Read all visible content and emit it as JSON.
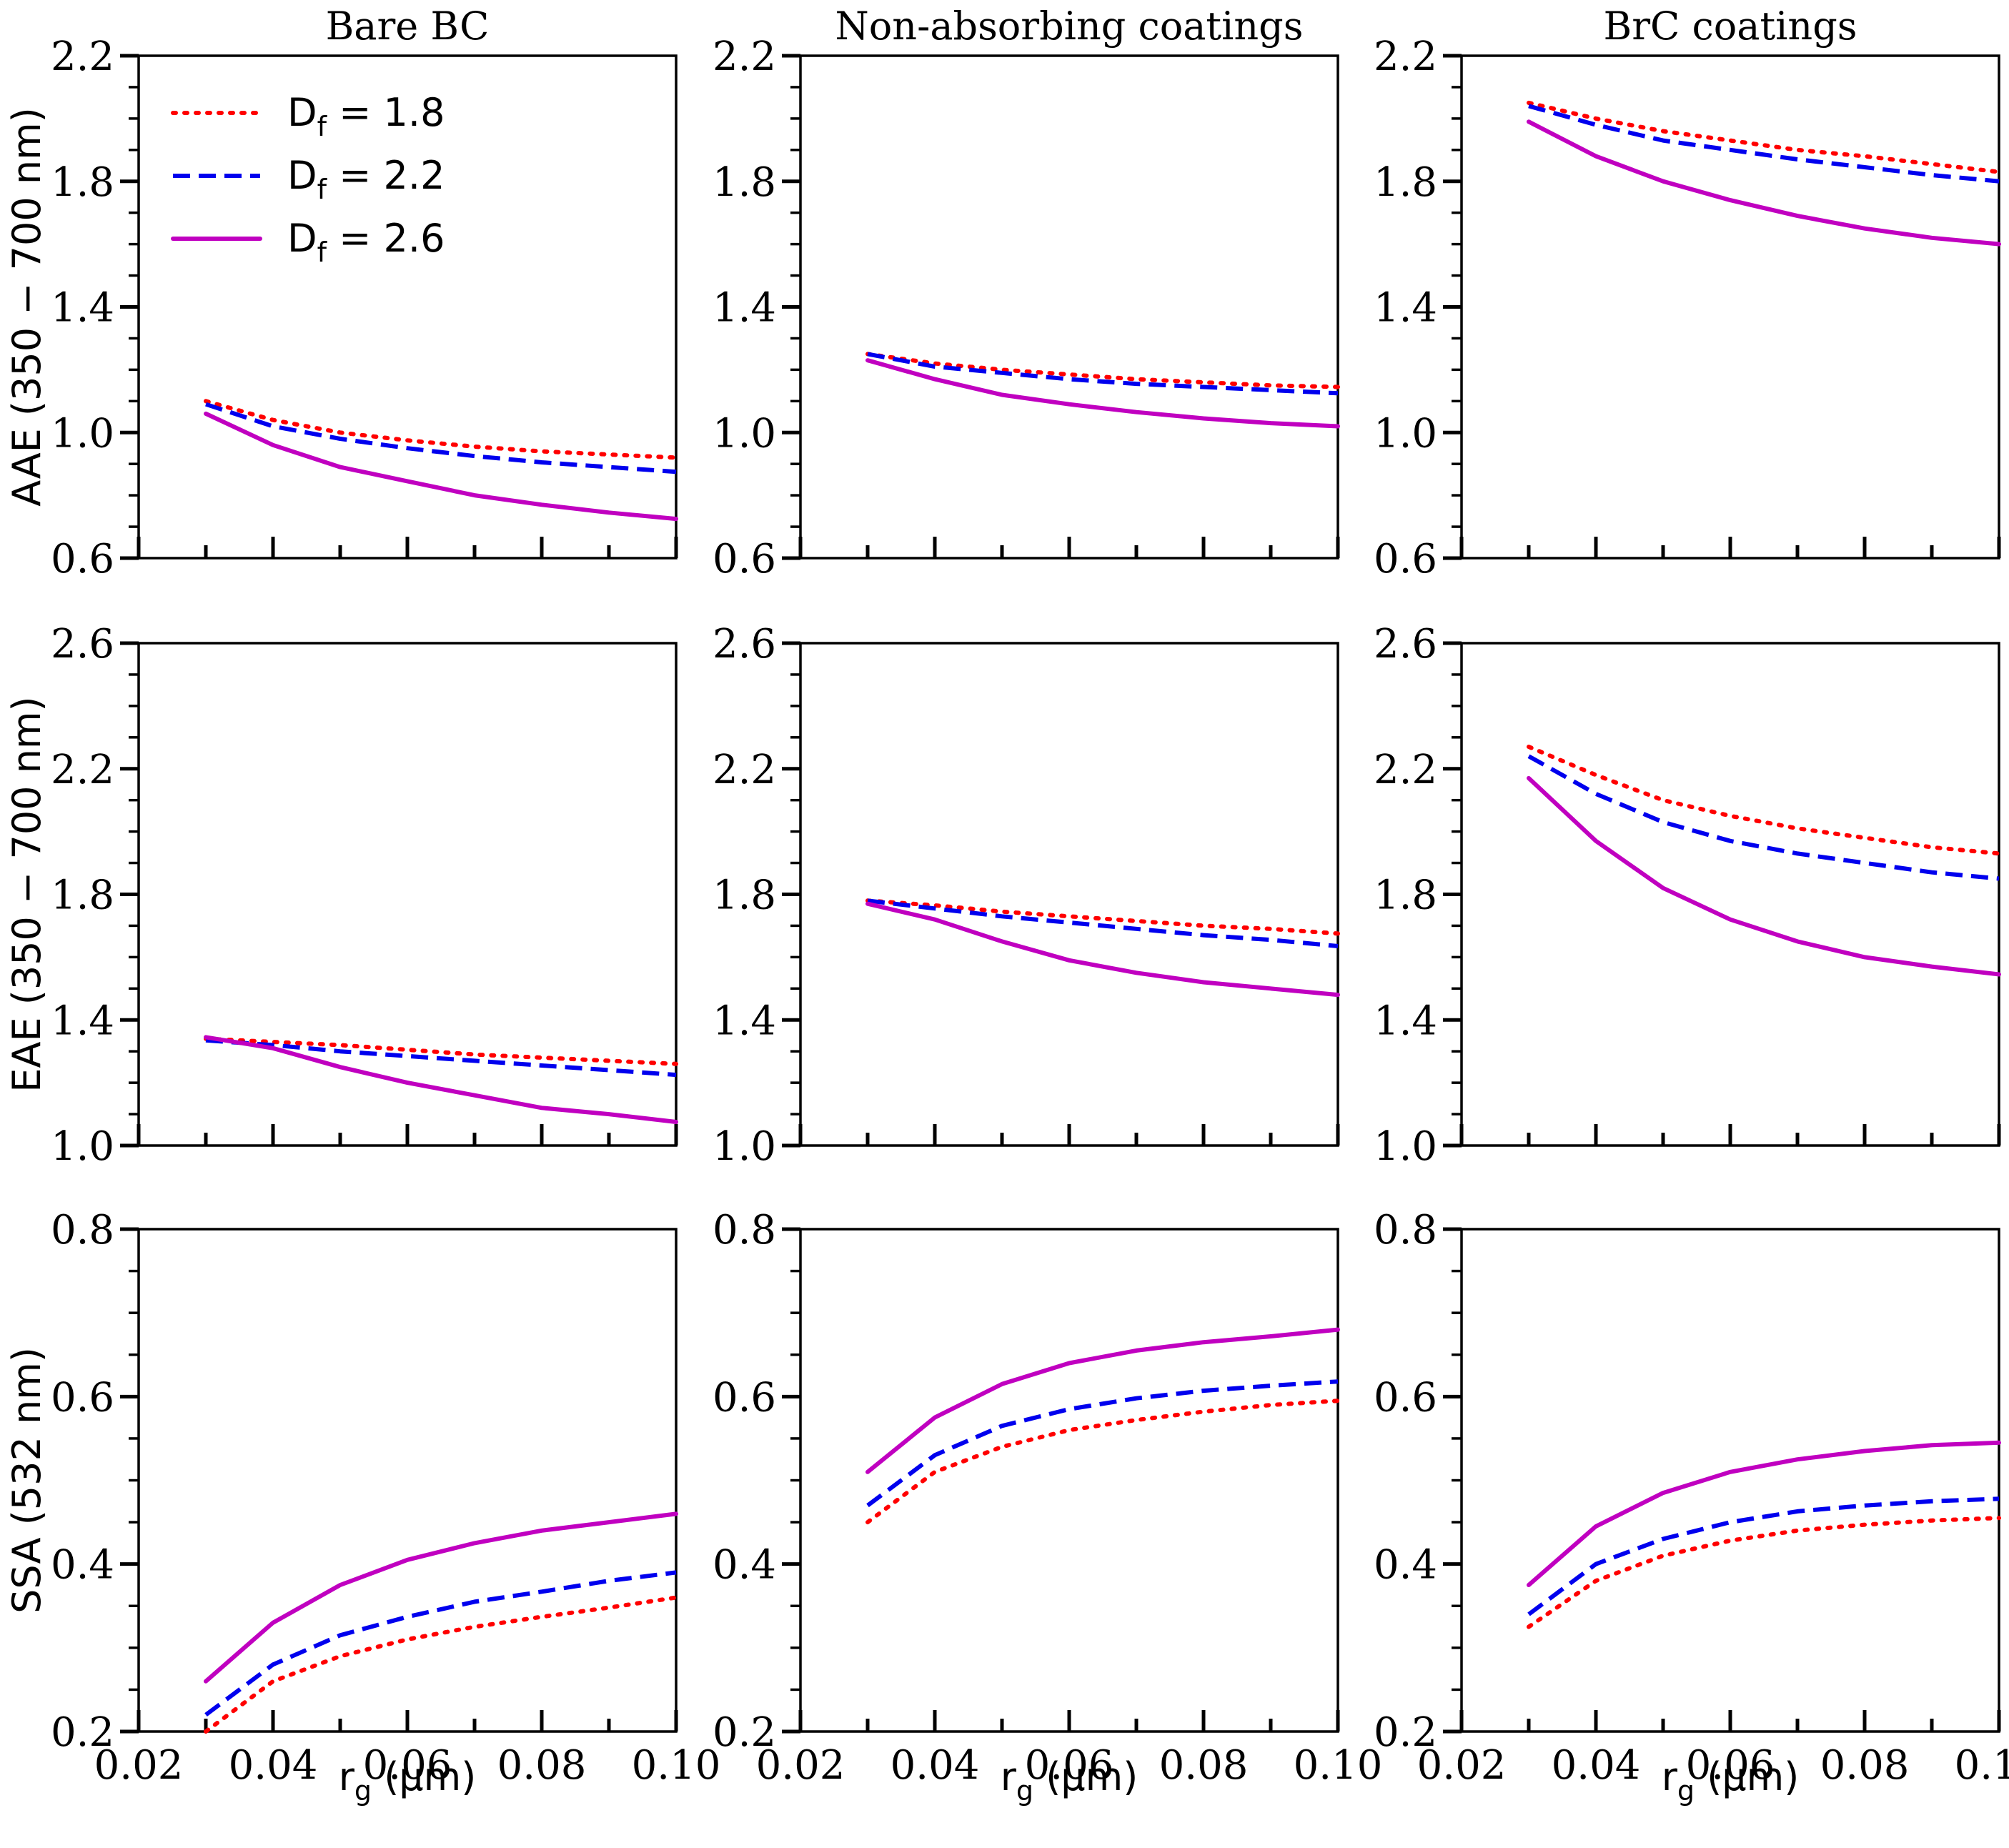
{
  "chart_data": {
    "type": "line",
    "layout": "3x3 grid",
    "column_titles": [
      "Bare BC",
      "Non-absorbing coatings",
      "BrC coatings"
    ],
    "row_ylabels": [
      "AAE (350 − 700 nm)",
      "EAE (350 − 700 nm)",
      "SSA (532 nm)"
    ],
    "xlabel": {
      "main": "r",
      "sub": "g",
      "unit": " (μm)"
    },
    "xlim": [
      0.02,
      0.1
    ],
    "xticks": [
      "0.02",
      "0.04",
      "0.06",
      "0.08",
      "0.10"
    ],
    "x": [
      0.03,
      0.04,
      0.05,
      0.06,
      0.07,
      0.08,
      0.09,
      0.1
    ],
    "rows": [
      {
        "ylim": [
          0.6,
          2.2
        ],
        "yticks": [
          "0.6",
          "1.0",
          "1.4",
          "1.8",
          "2.2"
        ]
      },
      {
        "ylim": [
          1.0,
          2.6
        ],
        "yticks": [
          "1.0",
          "1.4",
          "1.8",
          "2.2",
          "2.6"
        ]
      },
      {
        "ylim": [
          0.2,
          0.8
        ],
        "yticks": [
          "0.2",
          "0.4",
          "0.6",
          "0.8"
        ]
      }
    ],
    "legend": {
      "position": "top-left of first panel",
      "entries": [
        {
          "main": "D",
          "sub": "f",
          "value": " = 1.8",
          "color": "#ff0000",
          "style": "dotted"
        },
        {
          "main": "D",
          "sub": "f",
          "value": " = 2.2",
          "color": "#0000ee",
          "style": "dashed"
        },
        {
          "main": "D",
          "sub": "f",
          "value": " = 2.6",
          "color": "#c000c0",
          "style": "solid"
        }
      ]
    },
    "series_names": [
      "Df = 1.8",
      "Df = 2.2",
      "Df = 2.6"
    ],
    "panels": [
      {
        "row": 0,
        "col": 0,
        "series": [
          [
            1.1,
            1.04,
            1.0,
            0.975,
            0.955,
            0.94,
            0.93,
            0.92
          ],
          [
            1.09,
            1.02,
            0.98,
            0.95,
            0.925,
            0.905,
            0.89,
            0.875
          ],
          [
            1.06,
            0.96,
            0.89,
            0.845,
            0.8,
            0.77,
            0.745,
            0.725
          ]
        ]
      },
      {
        "row": 0,
        "col": 1,
        "series": [
          [
            1.25,
            1.22,
            1.2,
            1.185,
            1.17,
            1.16,
            1.15,
            1.145
          ],
          [
            1.25,
            1.21,
            1.19,
            1.17,
            1.155,
            1.145,
            1.135,
            1.125
          ],
          [
            1.23,
            1.17,
            1.12,
            1.09,
            1.065,
            1.045,
            1.03,
            1.02
          ]
        ]
      },
      {
        "row": 0,
        "col": 2,
        "series": [
          [
            2.05,
            2.0,
            1.96,
            1.93,
            1.9,
            1.88,
            1.855,
            1.83
          ],
          [
            2.04,
            1.98,
            1.93,
            1.9,
            1.87,
            1.845,
            1.82,
            1.8
          ],
          [
            1.99,
            1.88,
            1.8,
            1.74,
            1.69,
            1.65,
            1.62,
            1.6
          ]
        ]
      },
      {
        "row": 1,
        "col": 0,
        "series": [
          [
            1.34,
            1.33,
            1.32,
            1.305,
            1.29,
            1.28,
            1.27,
            1.26
          ],
          [
            1.335,
            1.32,
            1.3,
            1.285,
            1.27,
            1.255,
            1.24,
            1.225
          ],
          [
            1.345,
            1.31,
            1.25,
            1.2,
            1.16,
            1.12,
            1.1,
            1.075
          ]
        ]
      },
      {
        "row": 1,
        "col": 1,
        "series": [
          [
            1.78,
            1.765,
            1.745,
            1.73,
            1.715,
            1.7,
            1.69,
            1.675
          ],
          [
            1.78,
            1.755,
            1.73,
            1.71,
            1.69,
            1.67,
            1.655,
            1.635
          ],
          [
            1.77,
            1.72,
            1.65,
            1.59,
            1.55,
            1.52,
            1.5,
            1.48
          ]
        ]
      },
      {
        "row": 1,
        "col": 2,
        "series": [
          [
            2.27,
            2.18,
            2.1,
            2.05,
            2.01,
            1.98,
            1.95,
            1.93
          ],
          [
            2.24,
            2.12,
            2.03,
            1.97,
            1.93,
            1.9,
            1.87,
            1.85
          ],
          [
            2.17,
            1.97,
            1.82,
            1.72,
            1.65,
            1.6,
            1.57,
            1.545
          ]
        ]
      },
      {
        "row": 2,
        "col": 0,
        "series": [
          [
            0.2,
            0.26,
            0.29,
            0.31,
            0.325,
            0.337,
            0.348,
            0.36
          ],
          [
            0.22,
            0.28,
            0.315,
            0.337,
            0.355,
            0.367,
            0.38,
            0.39
          ],
          [
            0.26,
            0.33,
            0.375,
            0.405,
            0.425,
            0.44,
            0.45,
            0.46
          ]
        ]
      },
      {
        "row": 2,
        "col": 1,
        "series": [
          [
            0.45,
            0.51,
            0.54,
            0.56,
            0.572,
            0.582,
            0.59,
            0.595
          ],
          [
            0.47,
            0.53,
            0.565,
            0.585,
            0.598,
            0.607,
            0.613,
            0.618
          ],
          [
            0.51,
            0.575,
            0.615,
            0.64,
            0.655,
            0.665,
            0.672,
            0.68
          ]
        ]
      },
      {
        "row": 2,
        "col": 2,
        "series": [
          [
            0.325,
            0.38,
            0.41,
            0.428,
            0.44,
            0.447,
            0.452,
            0.455
          ],
          [
            0.34,
            0.4,
            0.43,
            0.45,
            0.463,
            0.47,
            0.475,
            0.478
          ],
          [
            0.375,
            0.445,
            0.485,
            0.51,
            0.525,
            0.535,
            0.542,
            0.545
          ]
        ]
      }
    ]
  }
}
